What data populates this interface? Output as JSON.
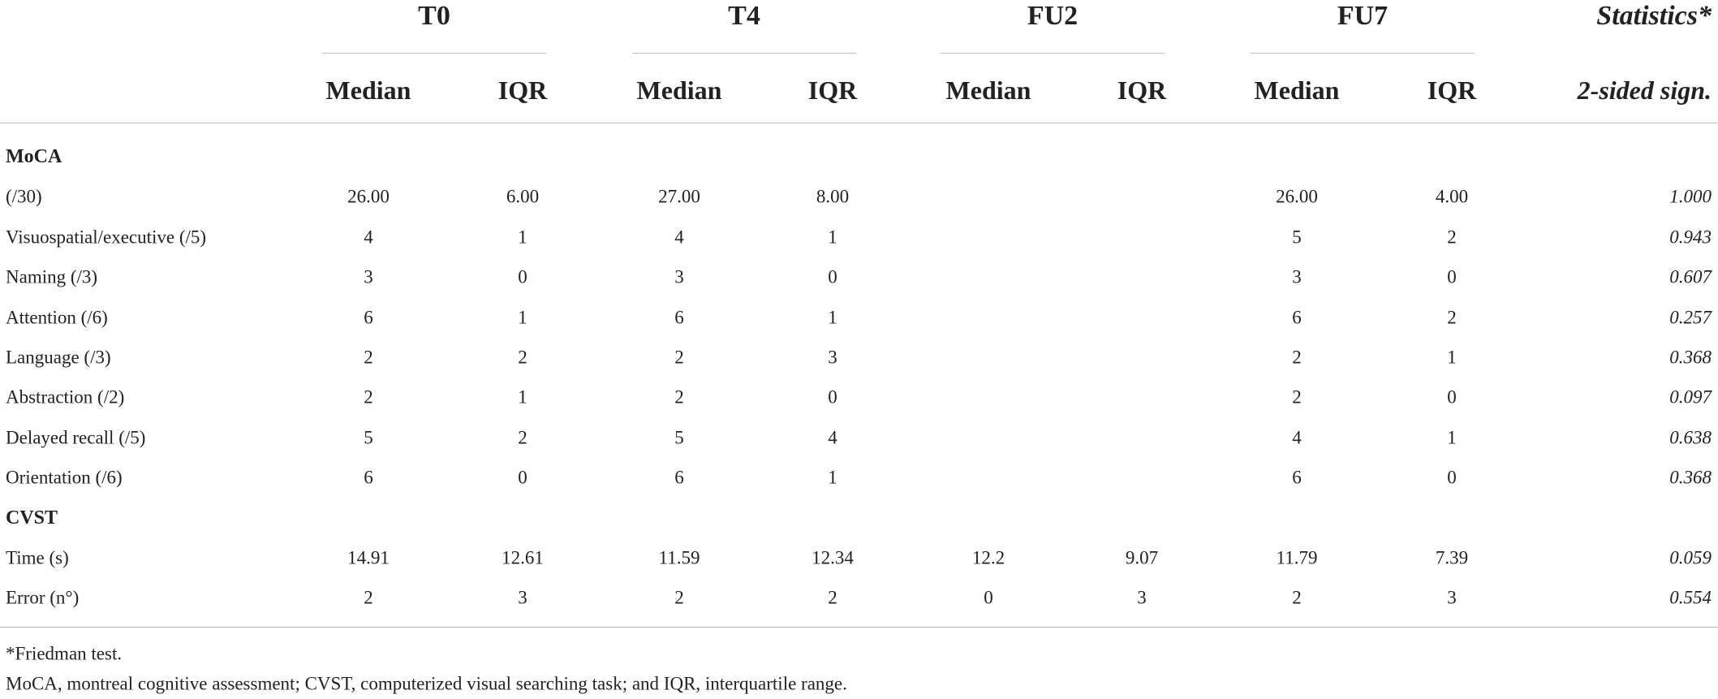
{
  "table": {
    "groups": [
      "T0",
      "T4",
      "FU2",
      "FU7"
    ],
    "stats_header": [
      "Statistics*",
      "2-sided sign."
    ],
    "subheaders": [
      "Median",
      "IQR"
    ],
    "sections": [
      {
        "title": "MoCA",
        "rows": [
          {
            "label": "(/30)",
            "values": [
              "26.00",
              "6.00",
              "27.00",
              "8.00",
              null,
              null,
              "26.00",
              "4.00"
            ],
            "sign": "1.000"
          },
          {
            "label": "Visuospatial/executive (/5)",
            "values": [
              "4",
              "1",
              "4",
              "1",
              null,
              null,
              "5",
              "2"
            ],
            "sign": "0.943"
          },
          {
            "label": "Naming (/3)",
            "values": [
              "3",
              "0",
              "3",
              "0",
              null,
              null,
              "3",
              "0"
            ],
            "sign": "0.607"
          },
          {
            "label": "Attention (/6)",
            "values": [
              "6",
              "1",
              "6",
              "1",
              null,
              null,
              "6",
              "2"
            ],
            "sign": "0.257"
          },
          {
            "label": "Language (/3)",
            "values": [
              "2",
              "2",
              "2",
              "3",
              null,
              null,
              "2",
              "1"
            ],
            "sign": "0.368"
          },
          {
            "label": "Abstraction (/2)",
            "values": [
              "2",
              "1",
              "2",
              "0",
              null,
              null,
              "2",
              "0"
            ],
            "sign": "0.097"
          },
          {
            "label": "Delayed recall (/5)",
            "values": [
              "5",
              "2",
              "5",
              "4",
              null,
              null,
              "4",
              "1"
            ],
            "sign": "0.638"
          },
          {
            "label": "Orientation (/6)",
            "values": [
              "6",
              "0",
              "6",
              "1",
              null,
              null,
              "6",
              "0"
            ],
            "sign": "0.368"
          }
        ]
      },
      {
        "title": "CVST",
        "rows": [
          {
            "label": "Time (s)",
            "values": [
              "14.91",
              "12.61",
              "11.59",
              "12.34",
              "12.2",
              "9.07",
              "11.79",
              "7.39"
            ],
            "sign": "0.059"
          },
          {
            "label": "Error (n°)",
            "values": [
              "2",
              "3",
              "2",
              "2",
              "0",
              "3",
              "2",
              "3"
            ],
            "sign": "0.554"
          }
        ]
      }
    ],
    "footnotes": [
      "*Friedman test.",
      "MoCA, montreal cognitive assessment; CVST, computerized visual searching task; and IQR, interquartile range."
    ]
  }
}
